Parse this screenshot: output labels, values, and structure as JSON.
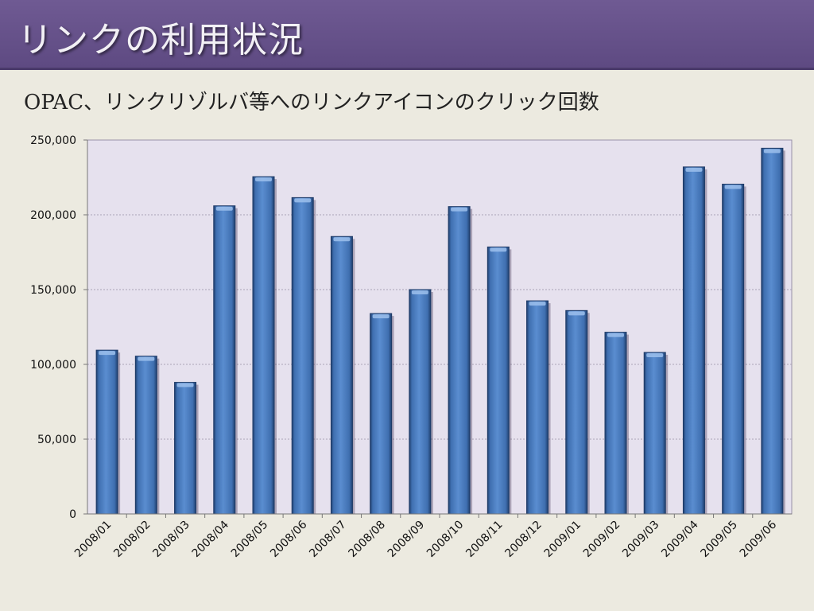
{
  "slide": {
    "title": "リンクの利用状況",
    "subtitle": "OPAC、リンクリゾルバ等へのリンクアイコンのクリック回数"
  },
  "colors": {
    "title_bar": "#644F89",
    "background": "#ECEAE0",
    "plot_area": "#E6E1EE",
    "bar": "#4F7FC0"
  },
  "chart_data": {
    "type": "bar",
    "title": "",
    "xlabel": "",
    "ylabel": "",
    "ylim": [
      0,
      250000
    ],
    "yticks": [
      "0",
      "50,000",
      "100,000",
      "150,000",
      "200,000",
      "250,000"
    ],
    "grid": true,
    "legend": "none",
    "categories": [
      "2008/01",
      "2008/02",
      "2008/03",
      "2008/04",
      "2008/05",
      "2008/06",
      "2008/07",
      "2008/08",
      "2008/09",
      "2008/10",
      "2008/11",
      "2008/12",
      "2009/01",
      "2009/02",
      "2009/03",
      "2009/04",
      "2009/05",
      "2009/06"
    ],
    "values": [
      109500,
      105500,
      88000,
      206000,
      225500,
      211500,
      185500,
      134000,
      150000,
      205500,
      178500,
      142500,
      136000,
      121500,
      108000,
      232000,
      220500,
      244500
    ]
  }
}
